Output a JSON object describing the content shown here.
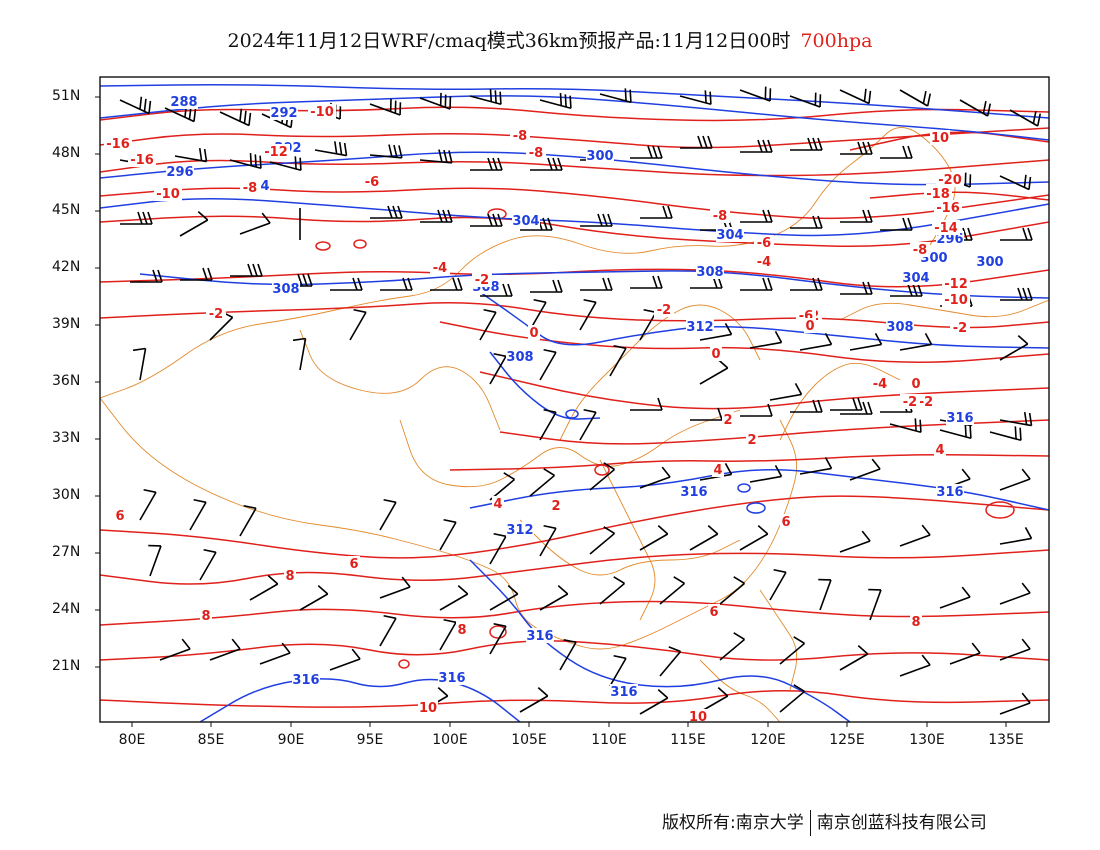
{
  "title": {
    "text": "2024年11月12日WRF/cmaq模式36km预报产品:11月12日00时",
    "level": "700hpa"
  },
  "colors": {
    "height": "#1f3fe0",
    "temperature": "#e0201b",
    "border": "#e38a2c",
    "wind": "#000000"
  },
  "axes": {
    "lat_labels": [
      "51N",
      "48N",
      "45N",
      "42N",
      "39N",
      "36N",
      "33N",
      "30N",
      "27N",
      "24N",
      "21N"
    ],
    "lon_labels": [
      "80E",
      "85E",
      "90E",
      "95E",
      "100E",
      "105E",
      "110E",
      "115E",
      "120E",
      "125E",
      "130E",
      "135E"
    ]
  },
  "contour_labels": {
    "height": [
      "288",
      "292",
      "292",
      "296",
      "300",
      "300",
      "304",
      "304",
      "304",
      "296",
      "300",
      "308",
      "308",
      "308",
      "304",
      "312",
      "308",
      "308",
      "312",
      "316",
      "316",
      "316",
      "316",
      "316",
      "316",
      "316"
    ],
    "temperature": [
      "-16",
      "-16",
      "-12",
      "-10",
      "-10",
      "-8",
      "-8",
      "-8",
      "-6",
      "-8",
      "-6",
      "-8",
      "-6",
      "-4",
      "-4",
      "-2",
      "-2",
      "-2",
      "-2",
      "-2",
      "0",
      "0",
      "0",
      "-2",
      "2",
      "2",
      "2",
      "4",
      "4",
      "4",
      "6",
      "6",
      "6",
      "8",
      "8",
      "6",
      "8",
      "8",
      "10",
      "10",
      "10",
      "10",
      "-20",
      "-18",
      "-16",
      "-14",
      "-12",
      "-10",
      "-6",
      "-4",
      "-2",
      "0"
    ]
  },
  "footer": {
    "left": "版权所有:南京大学",
    "right": "南京创蓝科技有限公司"
  }
}
